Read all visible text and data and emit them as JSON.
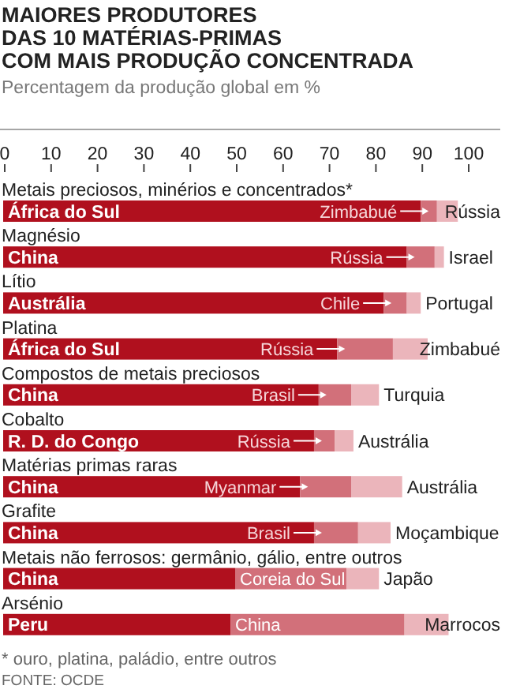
{
  "chart_data": {
    "type": "bar",
    "orientation": "horizontal",
    "stacked": true,
    "title": "MAIORES PRODUTORES\nDAS 10 MATÉRIAS-PRIMAS\nCOM MAIS PRODUÇÃO CONCENTRADA",
    "subtitle": "Percentagem da produção global em %",
    "categories": [
      "Metais preciosos, minérios e concentrados*",
      "Magnésio",
      "Lítio",
      "Platina",
      "Compostos de metais preciosos",
      "Cobalto",
      "Matérias primas raras",
      "Grafite",
      "Metais não ferrosos: germânio, gálio, entre outros",
      "Arsénio"
    ],
    "series": [
      {
        "color": "#b0101e",
        "values": [
          90,
          87,
          82,
          72,
          68,
          67,
          64,
          67,
          50,
          49
        ],
        "value_labels": [
          "África do Sul",
          "China",
          "Austrália",
          "África do Sul",
          "China",
          "R. D. do Congo",
          "China",
          "China",
          "China",
          "Peru"
        ]
      },
      {
        "color": "#d2707a",
        "values": [
          3.5,
          6,
          5,
          12,
          7,
          4.5,
          11,
          9.5,
          24,
          37.5
        ],
        "value_labels": [
          "Zimbabué",
          "Rússia",
          "Chile",
          "Rússia",
          "Brasil",
          "Rússia",
          "Myanmar",
          "Brasil",
          "Coreia do Sul",
          "China"
        ]
      },
      {
        "color": "#ebb5bb",
        "values": [
          4.5,
          2,
          3,
          7.5,
          6,
          4,
          11,
          7,
          7,
          9.5
        ],
        "value_labels": [
          "Rússia",
          "Israel",
          "Portugal",
          "Zimbabué",
          "Turquia",
          "Austrália",
          "Austrália",
          "Moçambique",
          "Japão",
          "Marrocos"
        ]
      }
    ],
    "xlim": [
      0,
      100
    ],
    "xticks": [
      0,
      10,
      20,
      30,
      40,
      50,
      60,
      70,
      80,
      90,
      100
    ],
    "annotations": [
      "* ouro, platina, paládio, entre outros",
      "FONTE: OCDE"
    ]
  }
}
